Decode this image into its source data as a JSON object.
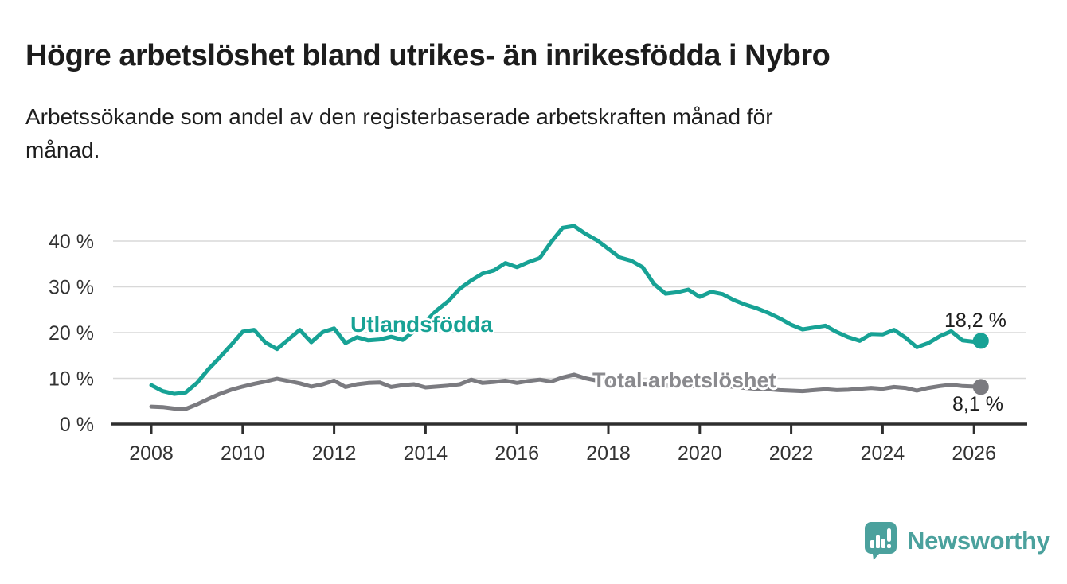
{
  "header": {
    "title": "Högre arbetslöshet bland utrikes- än inrikesfödda i Nybro",
    "subtitle_lines": [
      "Arbetssökande som andel av den registerbaserade arbetskraften månad för",
      "månad."
    ]
  },
  "footer": {
    "brand": "Newsworthy",
    "logo_color": "#4ba19d"
  },
  "colors": {
    "accent_teal": "#17a295",
    "line_gray": "#7b7b80",
    "grid": "#d8d8d8",
    "axis": "#2e2e2e",
    "axis_text": "#333333",
    "text": "#1d1d1d"
  },
  "chart_data": {
    "type": "line",
    "title": "Högre arbetslöshet bland utrikes- än inrikesfödda i Nybro",
    "subtitle": "Arbetssökande som andel av den registerbaserade arbetskraften månad för månad.",
    "xlabel": "",
    "ylabel": "",
    "ylim": [
      0,
      46
    ],
    "grid": true,
    "legend_position": "inline-labels",
    "x_ticks": [
      2008,
      2010,
      2012,
      2014,
      2016,
      2018,
      2020,
      2022,
      2024,
      2026
    ],
    "y_ticks": [
      0,
      10,
      20,
      30,
      40
    ],
    "y_tick_suffix": " %",
    "x": [
      2008,
      2008.25,
      2008.5,
      2008.75,
      2009,
      2009.25,
      2009.5,
      2009.75,
      2010,
      2010.25,
      2010.5,
      2010.75,
      2011,
      2011.25,
      2011.5,
      2011.75,
      2012,
      2012.25,
      2012.5,
      2012.75,
      2013,
      2013.25,
      2013.5,
      2013.75,
      2014,
      2014.25,
      2014.5,
      2014.75,
      2015,
      2015.25,
      2015.5,
      2015.75,
      2016,
      2016.25,
      2016.5,
      2016.75,
      2017,
      2017.25,
      2017.5,
      2017.75,
      2018,
      2018.25,
      2018.5,
      2018.75,
      2019,
      2019.25,
      2019.5,
      2019.75,
      2020,
      2020.25,
      2020.5,
      2020.75,
      2021,
      2021.25,
      2021.5,
      2021.75,
      2022,
      2022.25,
      2022.5,
      2022.75,
      2023,
      2023.25,
      2023.5,
      2023.75,
      2024,
      2024.25,
      2024.5,
      2024.75,
      2025,
      2025.25,
      2025.5,
      2025.75,
      2026,
      2026.15
    ],
    "series": [
      {
        "name": "Utlandsfödda",
        "color": "#17a295",
        "end_label": "18,2 %",
        "end_value": 18.2,
        "values": [
          8.5,
          7.2,
          6.6,
          6.9,
          9.0,
          12.0,
          14.6,
          17.3,
          20.2,
          20.6,
          17.8,
          16.4,
          18.5,
          20.6,
          17.9,
          20.1,
          20.9,
          17.7,
          19.0,
          18.3,
          18.5,
          19.1,
          18.4,
          20.3,
          22.4,
          24.9,
          26.9,
          29.6,
          31.4,
          32.9,
          33.6,
          35.2,
          34.3,
          35.4,
          36.3,
          39.8,
          42.9,
          43.3,
          41.6,
          40.2,
          38.3,
          36.4,
          35.7,
          34.3,
          30.6,
          28.5,
          28.8,
          29.4,
          27.8,
          28.9,
          28.4,
          27.1,
          26.1,
          25.3,
          24.3,
          23.1,
          21.7,
          20.7,
          21.1,
          21.5,
          20.1,
          19.0,
          18.2,
          19.7,
          19.6,
          20.6,
          18.9,
          16.8,
          17.7,
          19.2,
          20.3,
          18.3,
          18.0,
          18.2
        ]
      },
      {
        "name": "Total arbetslöshet",
        "color": "#7b7b80",
        "end_label": "8,1 %",
        "end_value": 8.1,
        "values": [
          3.8,
          3.7,
          3.4,
          3.3,
          4.3,
          5.5,
          6.6,
          7.5,
          8.2,
          8.8,
          9.3,
          9.9,
          9.4,
          8.9,
          8.2,
          8.7,
          9.5,
          8.1,
          8.7,
          9.0,
          9.1,
          8.1,
          8.5,
          8.7,
          8.0,
          8.2,
          8.4,
          8.7,
          9.7,
          9.0,
          9.2,
          9.5,
          9.0,
          9.4,
          9.7,
          9.3,
          10.2,
          10.8,
          10.0,
          9.5,
          9.3,
          8.9,
          9.1,
          8.8,
          8.6,
          8.4,
          8.5,
          8.3,
          8.2,
          8.6,
          8.4,
          8.1,
          7.9,
          7.7,
          7.6,
          7.4,
          7.3,
          7.2,
          7.4,
          7.6,
          7.4,
          7.5,
          7.7,
          7.9,
          7.7,
          8.1,
          7.9,
          7.3,
          7.9,
          8.3,
          8.6,
          8.3,
          8.2,
          8.1
        ]
      }
    ]
  }
}
